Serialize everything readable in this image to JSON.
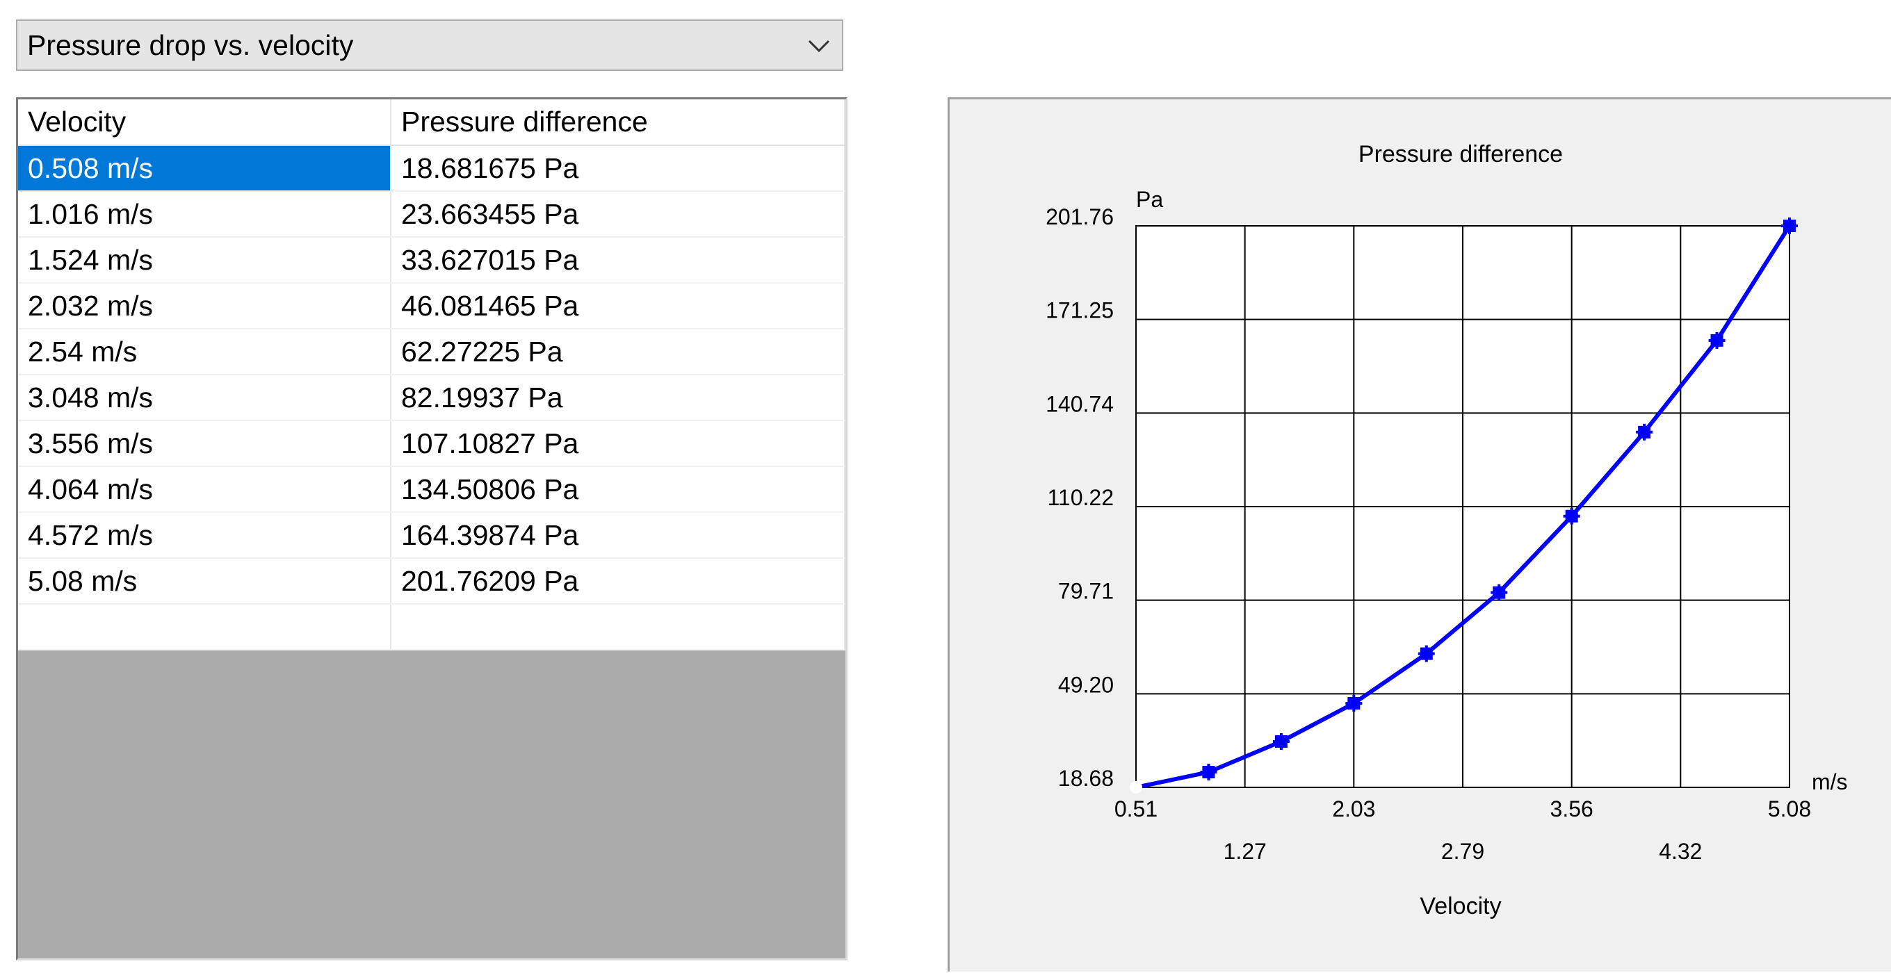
{
  "selector": {
    "value": "Pressure drop vs. velocity",
    "icon": "chevron-down-icon"
  },
  "table": {
    "headers": [
      "Velocity",
      "Pressure difference"
    ],
    "selected_row": 0,
    "rows": [
      [
        "0.508 m/s",
        "18.681675 Pa"
      ],
      [
        "1.016 m/s",
        "23.663455 Pa"
      ],
      [
        "1.524 m/s",
        "33.627015 Pa"
      ],
      [
        "2.032 m/s",
        "46.081465 Pa"
      ],
      [
        "2.54 m/s",
        "62.27225 Pa"
      ],
      [
        "3.048 m/s",
        "82.19937 Pa"
      ],
      [
        "3.556 m/s",
        "107.10827 Pa"
      ],
      [
        "4.064 m/s",
        "134.50806 Pa"
      ],
      [
        "4.572 m/s",
        "164.39874 Pa"
      ],
      [
        "5.08 m/s",
        "201.76209 Pa"
      ]
    ]
  },
  "chart_data": {
    "type": "line",
    "title": "Pressure difference",
    "xlabel": "Velocity",
    "ylabel": "",
    "x_unit": "m/s",
    "y_unit": "Pa",
    "x": [
      0.508,
      1.016,
      1.524,
      2.032,
      2.54,
      3.048,
      3.556,
      4.064,
      4.572,
      5.08
    ],
    "series": [
      {
        "values": [
          18.681675,
          23.663455,
          33.627015,
          46.081465,
          62.27225,
          82.19937,
          107.10827,
          134.50806,
          164.39874,
          201.76209
        ]
      }
    ],
    "xlim": [
      0.508,
      5.08
    ],
    "ylim": [
      18.68,
      201.76
    ],
    "x_ticks": [
      "0.51",
      "1.27",
      "2.03",
      "2.79",
      "3.56",
      "4.32",
      "5.08"
    ],
    "y_ticks": [
      "18.68",
      "49.20",
      "79.71",
      "110.22",
      "140.74",
      "171.25",
      "201.76"
    ],
    "grid": true,
    "line_color": "#0000ff",
    "start_marker_color": "#ffffff"
  }
}
